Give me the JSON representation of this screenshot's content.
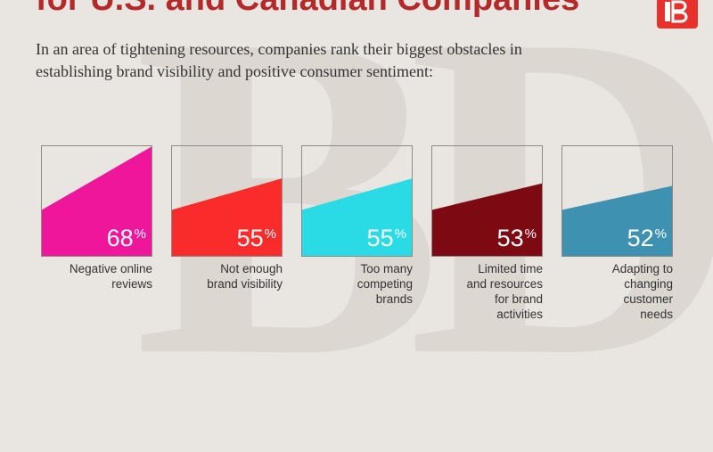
{
  "header": {
    "title": "for U.S. and Canadian Companies",
    "subtitle": "In an area of tightening resources, companies rank their biggest obstacles in establishing brand visibility and positive consumer sentiment:"
  },
  "colors": {
    "title": "#b42a2a",
    "logo": "#e8312a"
  },
  "chart_data": {
    "type": "bar",
    "categories": [
      "Negative online reviews",
      "Not enough brand visibility",
      "Too many competing brands",
      "Limited time and resources for brand activities",
      "Adapting to changing customer needs"
    ],
    "label_lines": [
      [
        "Negative online",
        "reviews"
      ],
      [
        "Not enough",
        "brand visibility"
      ],
      [
        "Too many",
        "competing",
        "brands"
      ],
      [
        "Limited time",
        "and resources",
        "for brand",
        "activities"
      ],
      [
        "Adapting to",
        "changing",
        "customer",
        "needs"
      ]
    ],
    "values": [
      68,
      55,
      55,
      53,
      52
    ],
    "value_labels": [
      "68",
      "55",
      "55",
      "53",
      "52"
    ],
    "unit": "%",
    "colors": [
      "#f0169b",
      "#fa2b2b",
      "#2adbe6",
      "#7d0913",
      "#3f91b2"
    ]
  }
}
